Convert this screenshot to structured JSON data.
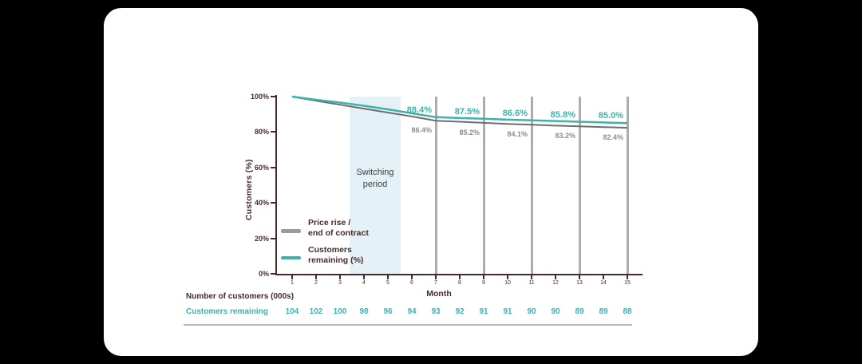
{
  "colors": {
    "background": "#000000",
    "card": "#ffffff",
    "maroon": "#472a2b",
    "teal": "#3fb0ab",
    "gray_line": "#6e6e6e",
    "ref_line": "#adadad",
    "band": "#e4f1f6"
  },
  "chart_data": {
    "type": "line",
    "title": "",
    "xlabel": "Month",
    "ylabel": "Customers (%)",
    "x": [
      1,
      2,
      3,
      4,
      5,
      6,
      7,
      8,
      9,
      10,
      11,
      12,
      13,
      14,
      15
    ],
    "ylim": [
      0,
      100
    ],
    "ytick_labels": [
      "100%",
      "80%",
      "60%",
      "40%",
      "20%",
      "0%"
    ],
    "grid": "off",
    "legend_position": "left-middle",
    "series": [
      {
        "name": "Price rise / end of contract",
        "color": "#6e6e6e",
        "values": [
          100,
          97.6,
          95.4,
          93.2,
          91.0,
          88.8,
          86.4,
          85.8,
          85.2,
          84.6,
          84.1,
          83.6,
          83.2,
          82.8,
          82.4
        ]
      },
      {
        "name": "Customers remaining (%)",
        "color": "#3fb0ab",
        "values": [
          100,
          98.2,
          96.6,
          94.8,
          92.8,
          90.6,
          88.4,
          87.9,
          87.5,
          87.0,
          86.6,
          86.2,
          85.8,
          85.4,
          85.0
        ]
      }
    ],
    "reference_lines": {
      "months": [
        7,
        9,
        11,
        13,
        15
      ]
    },
    "callouts": {
      "teal_labels": [
        "88.4%",
        "87.5%",
        "86.6%",
        "85.8%",
        "85.0%"
      ],
      "gray_labels": [
        "86.4%",
        "85.2%",
        "84.1%",
        "83.2%",
        "82.4%"
      ]
    },
    "band": {
      "x_from": 3.4,
      "x_to": 5.4,
      "label_line1": "Switching",
      "label_line2": "period"
    },
    "table": {
      "header": "Number of customers (000s)",
      "row_label": "Customers remaining",
      "values": [
        104,
        102,
        100,
        98,
        96,
        94,
        93,
        92,
        91,
        91,
        90,
        90,
        89,
        89,
        88
      ]
    }
  },
  "legend": {
    "items": [
      {
        "line1": "Price rise /",
        "line2": "end of contract",
        "color": "#9b9b9b"
      },
      {
        "line1": "Customers",
        "line2": "remaining (%)",
        "color": "#3fb0ab"
      }
    ]
  }
}
